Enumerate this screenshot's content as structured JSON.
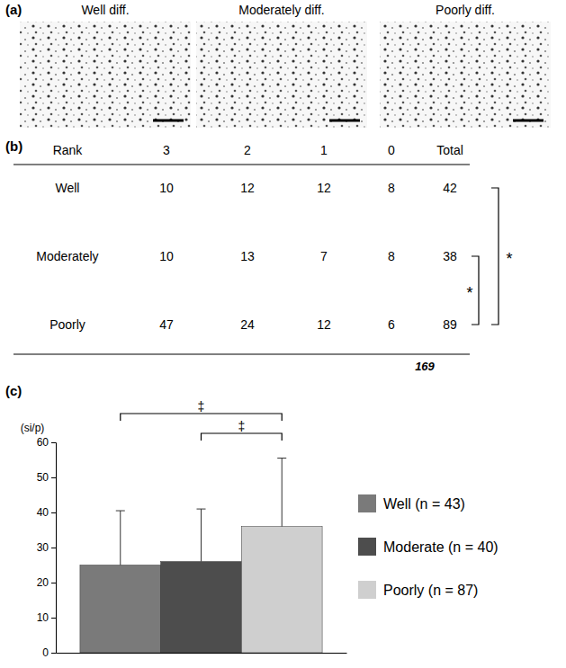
{
  "panel_a": {
    "letter": "(a)",
    "images": [
      {
        "title": "Well diff."
      },
      {
        "title": "Moderately diff."
      },
      {
        "title": "Poorly diff."
      }
    ]
  },
  "panel_b": {
    "letter": "(b)",
    "table": {
      "header": [
        "Rank",
        "3",
        "2",
        "1",
        "0",
        "Total"
      ],
      "rows": [
        {
          "label": "Well",
          "counts": [
            10,
            12,
            12,
            8
          ],
          "total": 42
        },
        {
          "label": "Moderately",
          "counts": [
            10,
            13,
            7,
            8
          ],
          "total": 38
        },
        {
          "label": "Poorly",
          "counts": [
            47,
            24,
            12,
            6
          ],
          "total": 89
        }
      ],
      "grand_total": 169,
      "comparisons": [
        {
          "rows": [
            1,
            2
          ],
          "label": "*"
        },
        {
          "rows": [
            0,
            2
          ],
          "label": "*"
        }
      ]
    }
  },
  "panel_c": {
    "letter": "(c)"
  },
  "chart_data": {
    "type": "bar",
    "ylabel": "(si/p)",
    "categories": [
      null
    ],
    "ylim": [
      0,
      60
    ],
    "yticks": [
      0,
      10,
      20,
      30,
      40,
      50,
      60
    ],
    "tick_labels": "y",
    "legend": "right",
    "series": [
      {
        "name": "Well (n = 43)",
        "color": "#7a7a7a",
        "values": [
          25
        ],
        "errors": [
          15.5
        ]
      },
      {
        "name": "Moderate (n = 40)",
        "color": "#4d4d4d",
        "values": [
          26
        ],
        "errors": [
          15
        ]
      },
      {
        "name": "Poorly (n = 87)",
        "color": "#cfcfcf",
        "values": [
          36
        ],
        "errors": [
          19.5
        ]
      }
    ],
    "annotations": [
      {
        "text": "‡",
        "between": [
          0,
          2
        ]
      },
      {
        "text": "‡",
        "between": [
          1,
          2
        ]
      }
    ]
  }
}
